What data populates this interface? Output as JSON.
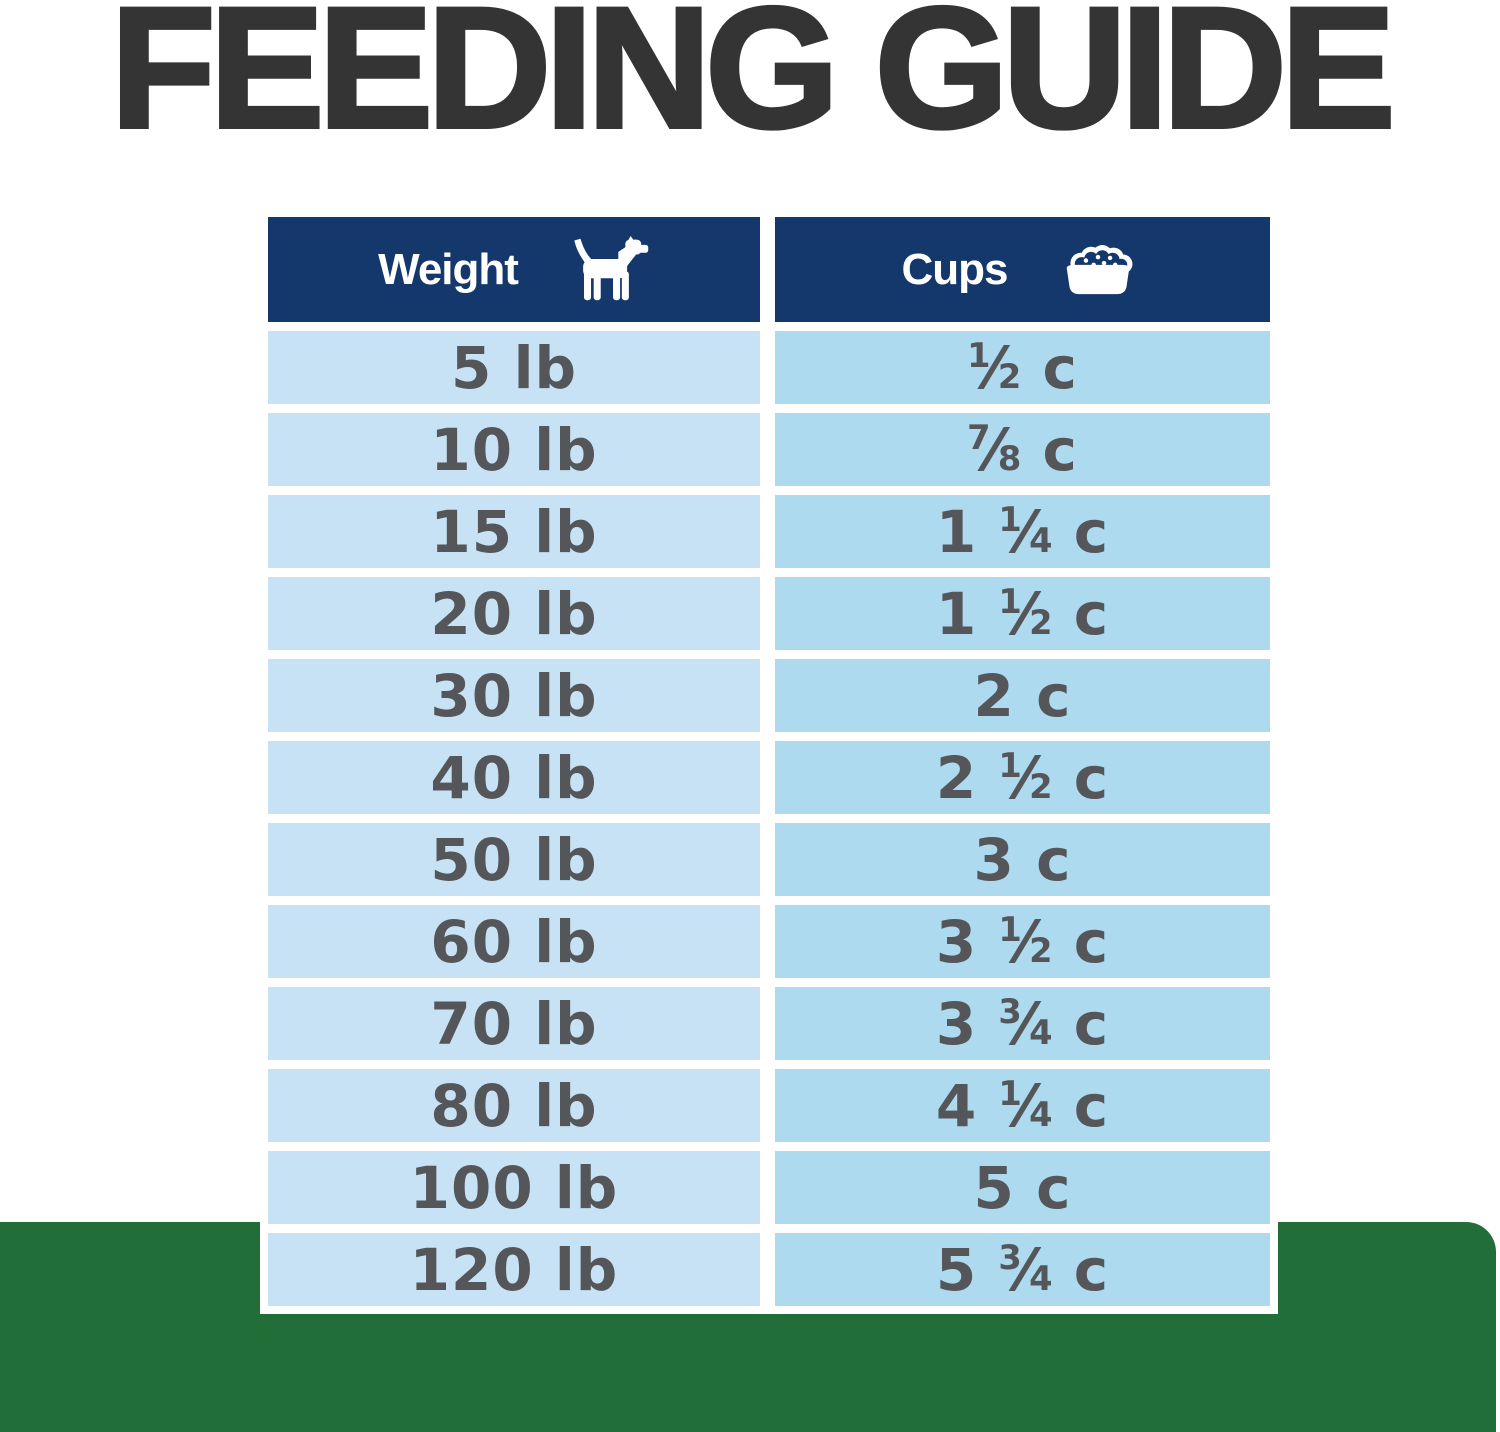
{
  "title": "FEEDING GUIDE",
  "table": {
    "columns": [
      {
        "label": "Weight",
        "icon": "dog-icon"
      },
      {
        "label": "Cups",
        "icon": "food-bowl-icon"
      }
    ],
    "rows": [
      {
        "weight": "5 lb",
        "cups": "1/2 c"
      },
      {
        "weight": "10 lb",
        "cups": "7/8 c"
      },
      {
        "weight": "15 lb",
        "cups": "1 1/4 c"
      },
      {
        "weight": "20 lb",
        "cups": "1 1/2 c"
      },
      {
        "weight": "30 lb",
        "cups": "2 c"
      },
      {
        "weight": "40 lb",
        "cups": "2 1/2 c"
      },
      {
        "weight": "50 lb",
        "cups": "3 c"
      },
      {
        "weight": "60 lb",
        "cups": "3 1/2 c"
      },
      {
        "weight": "70 lb",
        "cups": "3 3/4 c"
      },
      {
        "weight": "80 lb",
        "cups": "4 1/4 c"
      },
      {
        "weight": "100 lb",
        "cups": "5 c"
      },
      {
        "weight": "120 lb",
        "cups": "5 3/4 c"
      }
    ]
  },
  "chart_data": {
    "type": "table",
    "title": "FEEDING GUIDE",
    "columns": [
      "Weight",
      "Cups"
    ],
    "rows": [
      [
        "5 lb",
        "1/2 c"
      ],
      [
        "10 lb",
        "7/8 c"
      ],
      [
        "15 lb",
        "1 1/4 c"
      ],
      [
        "20 lb",
        "1 1/2 c"
      ],
      [
        "30 lb",
        "2 c"
      ],
      [
        "40 lb",
        "2 1/2 c"
      ],
      [
        "50 lb",
        "3 c"
      ],
      [
        "60 lb",
        "3 1/2 c"
      ],
      [
        "70 lb",
        "3 3/4 c"
      ],
      [
        "80 lb",
        "4 1/4 c"
      ],
      [
        "100 lb",
        "5 c"
      ],
      [
        "120 lb",
        "5 3/4 c"
      ]
    ]
  },
  "colors": {
    "title_gray": "#343434",
    "header_navy": "#14386b",
    "weight_cell_blue": "#c6e2f4",
    "cups_cell_blue": "#addaef",
    "cell_text_gray": "#55565a",
    "green_band": "#216e39",
    "background": "#ffffff"
  }
}
